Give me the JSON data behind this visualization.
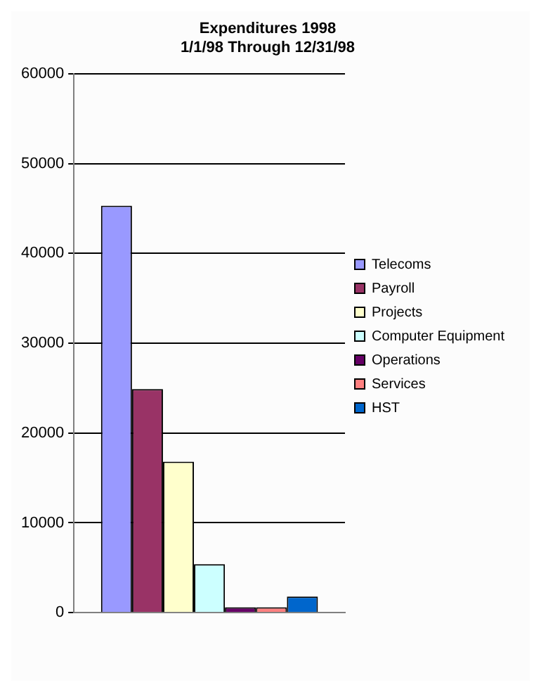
{
  "chart_data": {
    "type": "bar",
    "title": "Expenditures 1998",
    "subtitle": "1/1/98 Through 12/31/98",
    "categories": [
      null
    ],
    "series": [
      {
        "name": "Telecoms",
        "color": "#9999ff",
        "values": [
          45300
        ]
      },
      {
        "name": "Payroll",
        "color": "#993366",
        "values": [
          24900
        ]
      },
      {
        "name": "Projects",
        "color": "#ffffcc",
        "values": [
          16800
        ]
      },
      {
        "name": "Computer Equipment",
        "color": "#ccffff",
        "values": [
          5400
        ]
      },
      {
        "name": "Operations",
        "color": "#660066",
        "values": [
          600
        ]
      },
      {
        "name": "Services",
        "color": "#ff8080",
        "values": [
          600
        ]
      },
      {
        "name": "HST",
        "color": "#0066cc",
        "values": [
          1800
        ]
      }
    ],
    "ylim": [
      0,
      60000
    ],
    "yticks": [
      0,
      10000,
      20000,
      30000,
      40000,
      50000,
      60000
    ],
    "grid": "y",
    "legend": "right"
  }
}
